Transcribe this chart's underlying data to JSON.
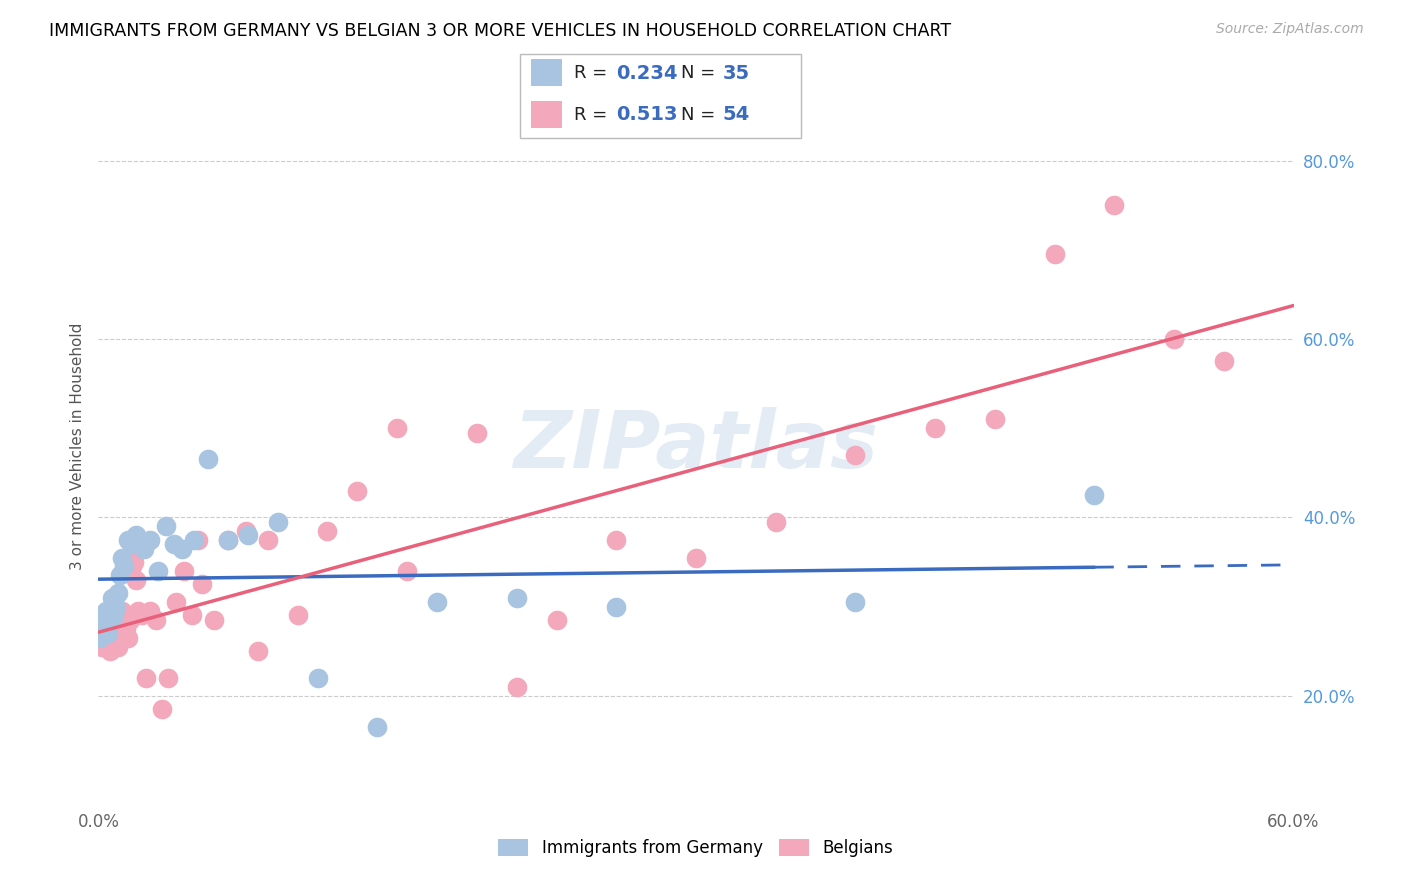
{
  "title": "IMMIGRANTS FROM GERMANY VS BELGIAN 3 OR MORE VEHICLES IN HOUSEHOLD CORRELATION CHART",
  "source": "Source: ZipAtlas.com",
  "ylabel": "3 or more Vehicles in Household",
  "xlim": [
    0.0,
    0.6
  ],
  "ylim": [
    0.08,
    0.88
  ],
  "yticks": [
    0.2,
    0.4,
    0.6,
    0.8
  ],
  "ytick_labels": [
    "20.0%",
    "40.0%",
    "60.0%",
    "80.0%"
  ],
  "xticks": [
    0.0,
    0.1,
    0.2,
    0.3,
    0.4,
    0.5,
    0.6
  ],
  "xtick_labels": [
    "0.0%",
    "",
    "",
    "",
    "",
    "",
    "60.0%"
  ],
  "blue_R": 0.234,
  "blue_N": 35,
  "pink_R": 0.513,
  "pink_N": 54,
  "blue_color": "#a8c4e0",
  "pink_color": "#f4a8bb",
  "blue_line_color": "#3a6bbf",
  "pink_line_color": "#e8607a",
  "watermark": "ZIPatlas",
  "blue_scatter_x": [
    0.001,
    0.002,
    0.003,
    0.004,
    0.005,
    0.006,
    0.007,
    0.008,
    0.009,
    0.01,
    0.011,
    0.012,
    0.013,
    0.015,
    0.017,
    0.019,
    0.021,
    0.023,
    0.026,
    0.03,
    0.034,
    0.038,
    0.042,
    0.048,
    0.055,
    0.065,
    0.075,
    0.09,
    0.11,
    0.14,
    0.17,
    0.21,
    0.26,
    0.38,
    0.5
  ],
  "blue_scatter_y": [
    0.265,
    0.28,
    0.275,
    0.295,
    0.27,
    0.285,
    0.31,
    0.29,
    0.3,
    0.315,
    0.335,
    0.355,
    0.345,
    0.375,
    0.37,
    0.38,
    0.37,
    0.365,
    0.375,
    0.34,
    0.39,
    0.37,
    0.365,
    0.375,
    0.465,
    0.375,
    0.38,
    0.395,
    0.22,
    0.165,
    0.305,
    0.31,
    0.3,
    0.305,
    0.425
  ],
  "pink_scatter_x": [
    0.001,
    0.002,
    0.003,
    0.004,
    0.005,
    0.006,
    0.007,
    0.008,
    0.009,
    0.01,
    0.011,
    0.012,
    0.013,
    0.014,
    0.015,
    0.016,
    0.017,
    0.018,
    0.019,
    0.02,
    0.022,
    0.024,
    0.026,
    0.029,
    0.032,
    0.035,
    0.039,
    0.043,
    0.047,
    0.052,
    0.058,
    0.065,
    0.074,
    0.085,
    0.1,
    0.115,
    0.13,
    0.155,
    0.19,
    0.23,
    0.26,
    0.3,
    0.34,
    0.38,
    0.42,
    0.45,
    0.48,
    0.51,
    0.54,
    0.565,
    0.15,
    0.21,
    0.08,
    0.05
  ],
  "pink_scatter_y": [
    0.26,
    0.255,
    0.265,
    0.27,
    0.26,
    0.25,
    0.275,
    0.28,
    0.265,
    0.255,
    0.29,
    0.295,
    0.285,
    0.275,
    0.265,
    0.285,
    0.345,
    0.35,
    0.33,
    0.295,
    0.29,
    0.22,
    0.295,
    0.285,
    0.185,
    0.22,
    0.305,
    0.34,
    0.29,
    0.325,
    0.285,
    0.375,
    0.385,
    0.375,
    0.29,
    0.385,
    0.43,
    0.34,
    0.495,
    0.285,
    0.375,
    0.355,
    0.395,
    0.47,
    0.5,
    0.51,
    0.695,
    0.75,
    0.6,
    0.575,
    0.5,
    0.21,
    0.25,
    0.375
  ]
}
